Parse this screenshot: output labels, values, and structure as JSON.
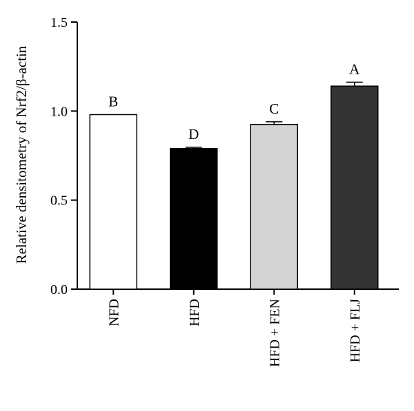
{
  "chart_data": {
    "type": "bar",
    "categories": [
      "NFD",
      "HFD",
      "HFD + FEN",
      "HFD + FLJ"
    ],
    "values": [
      0.98,
      0.79,
      0.925,
      1.14
    ],
    "errors": [
      0.0,
      0.007,
      0.015,
      0.022
    ],
    "significance_letters": [
      "B",
      "D",
      "C",
      "A"
    ],
    "bar_colors": [
      "#ffffff",
      "#000000",
      "#d4d4d4",
      "#333333"
    ],
    "ylabel": "Relative densitometry of Nrf2/β-actin",
    "ylim": [
      0.0,
      1.5
    ],
    "yticks": [
      "0.0",
      "0.5",
      "1.0",
      "1.5"
    ],
    "ytick_values": [
      0.0,
      0.5,
      1.0,
      1.5
    ],
    "grid": false,
    "legend": "none"
  }
}
